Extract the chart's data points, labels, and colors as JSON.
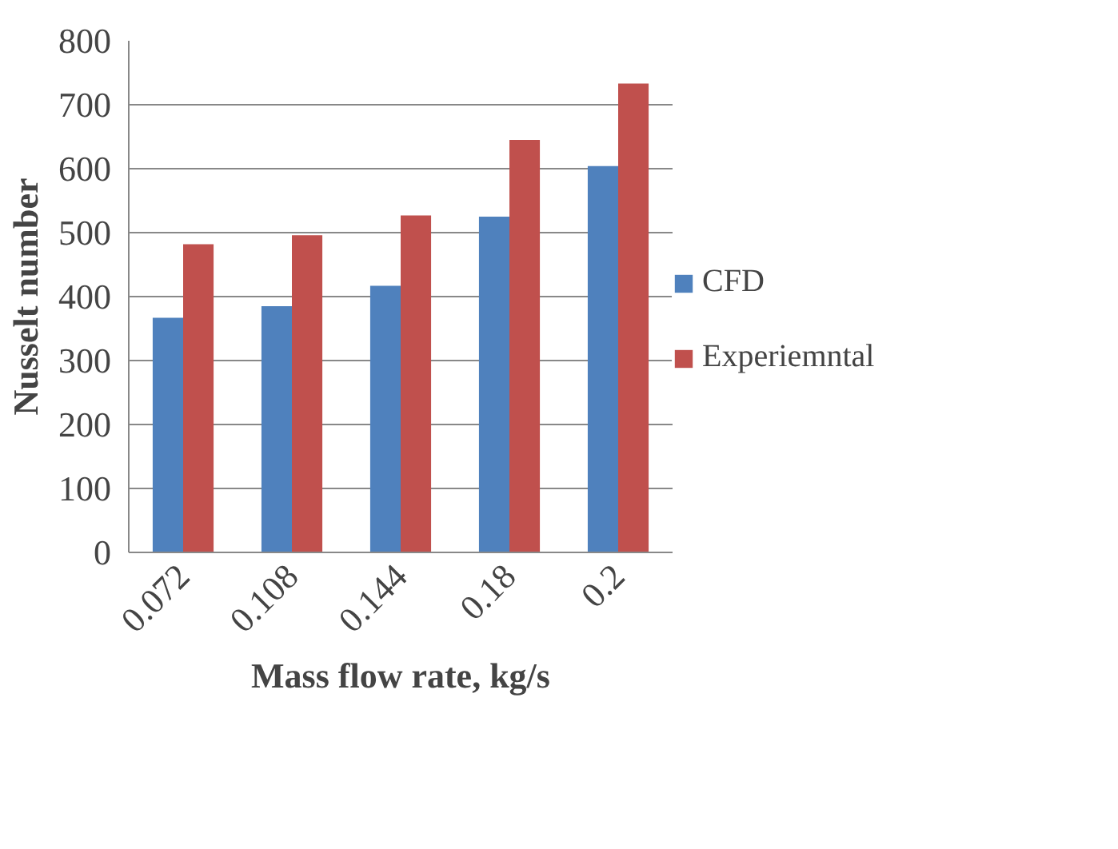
{
  "chart_data": {
    "type": "bar",
    "xlabel": "Mass flow rate, kg/s",
    "ylabel": "Nusselt number",
    "categories": [
      "0.072",
      "0.108",
      "0.144",
      "0.18",
      "0.2"
    ],
    "series": [
      {
        "name": "CFD",
        "color": "#4f81bd",
        "values": [
          367,
          385,
          417,
          525,
          604
        ]
      },
      {
        "name": "Experiemntal",
        "color": "#c0504d",
        "values": [
          482,
          496,
          527,
          645,
          733
        ]
      }
    ],
    "ylim": [
      0,
      800
    ],
    "yticks": [
      0,
      100,
      200,
      300,
      400,
      500,
      600,
      700,
      800
    ],
    "grid": "y",
    "legend": "right"
  }
}
